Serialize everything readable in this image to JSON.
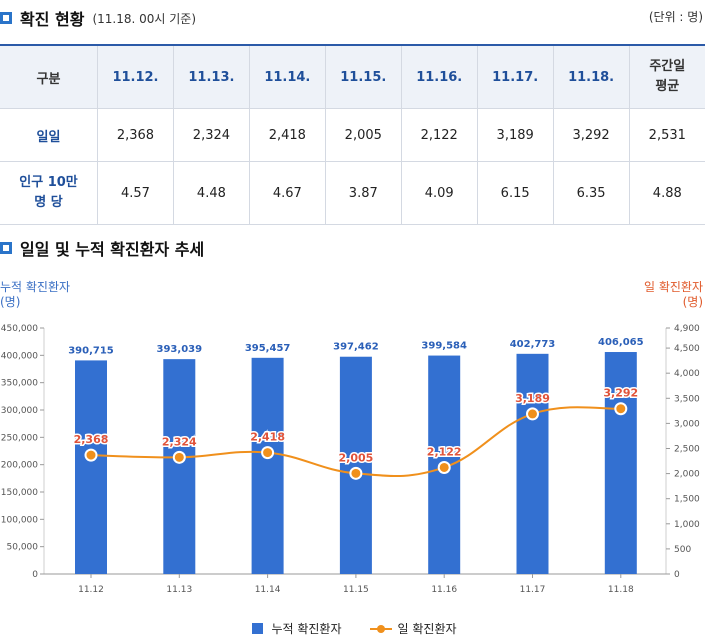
{
  "section1": {
    "title": "확진 현황",
    "subtitle": "(11.18. 00시 기준)",
    "unit": "(단위 : 명)"
  },
  "table": {
    "header": [
      "구분",
      "11.12.",
      "11.13.",
      "11.14.",
      "11.15.",
      "11.16.",
      "11.17.",
      "11.18.",
      "주간일\n평균"
    ],
    "rows": [
      {
        "label": "일일",
        "values": [
          "2,368",
          "2,324",
          "2,418",
          "2,005",
          "2,122",
          "3,189",
          "3,292",
          "2,531"
        ]
      },
      {
        "label": "인구 10만\n명 당",
        "values": [
          "4.57",
          "4.48",
          "4.67",
          "3.87",
          "4.09",
          "6.15",
          "6.35",
          "4.88"
        ]
      }
    ]
  },
  "section2": {
    "title": "일일 및 누적 확진환자 추세"
  },
  "chart_data": {
    "type": "bar+line",
    "categories": [
      "11.12",
      "11.13",
      "11.14",
      "11.15",
      "11.16",
      "11.17",
      "11.18"
    ],
    "left_axis": {
      "label": "누적 확진환자\n(명)",
      "ylim": [
        0,
        450000
      ],
      "ticks": [
        "0",
        "50,000",
        "100,000",
        "150,000",
        "200,000",
        "250,000",
        "300,000",
        "350,000",
        "400,000",
        "450,000"
      ]
    },
    "right_axis": {
      "label": "일 확진환자\n(명)",
      "ylim": [
        0,
        4900
      ],
      "ticks": [
        "0",
        "500",
        "1,000",
        "1,500",
        "2,000",
        "2,500",
        "3,000",
        "3,500",
        "4,000",
        "4,500",
        "4,900"
      ]
    },
    "series": [
      {
        "name": "누적 확진환자",
        "type": "bar",
        "axis": "left",
        "color": "#3370d1",
        "values": [
          390715,
          393039,
          395457,
          397462,
          399584,
          402773,
          406065
        ],
        "labels": [
          "390,715",
          "393,039",
          "395,457",
          "397,462",
          "399,584",
          "402,773",
          "406,065"
        ]
      },
      {
        "name": "일 확진환자",
        "type": "line",
        "axis": "right",
        "color": "#f0901c",
        "values": [
          2368,
          2324,
          2418,
          2005,
          2122,
          3189,
          3292
        ],
        "labels": [
          "2,368",
          "2,324",
          "2,418",
          "2,005",
          "2,122",
          "3,189",
          "3,292"
        ]
      }
    ],
    "grid": false,
    "legend": "bottom-center"
  }
}
